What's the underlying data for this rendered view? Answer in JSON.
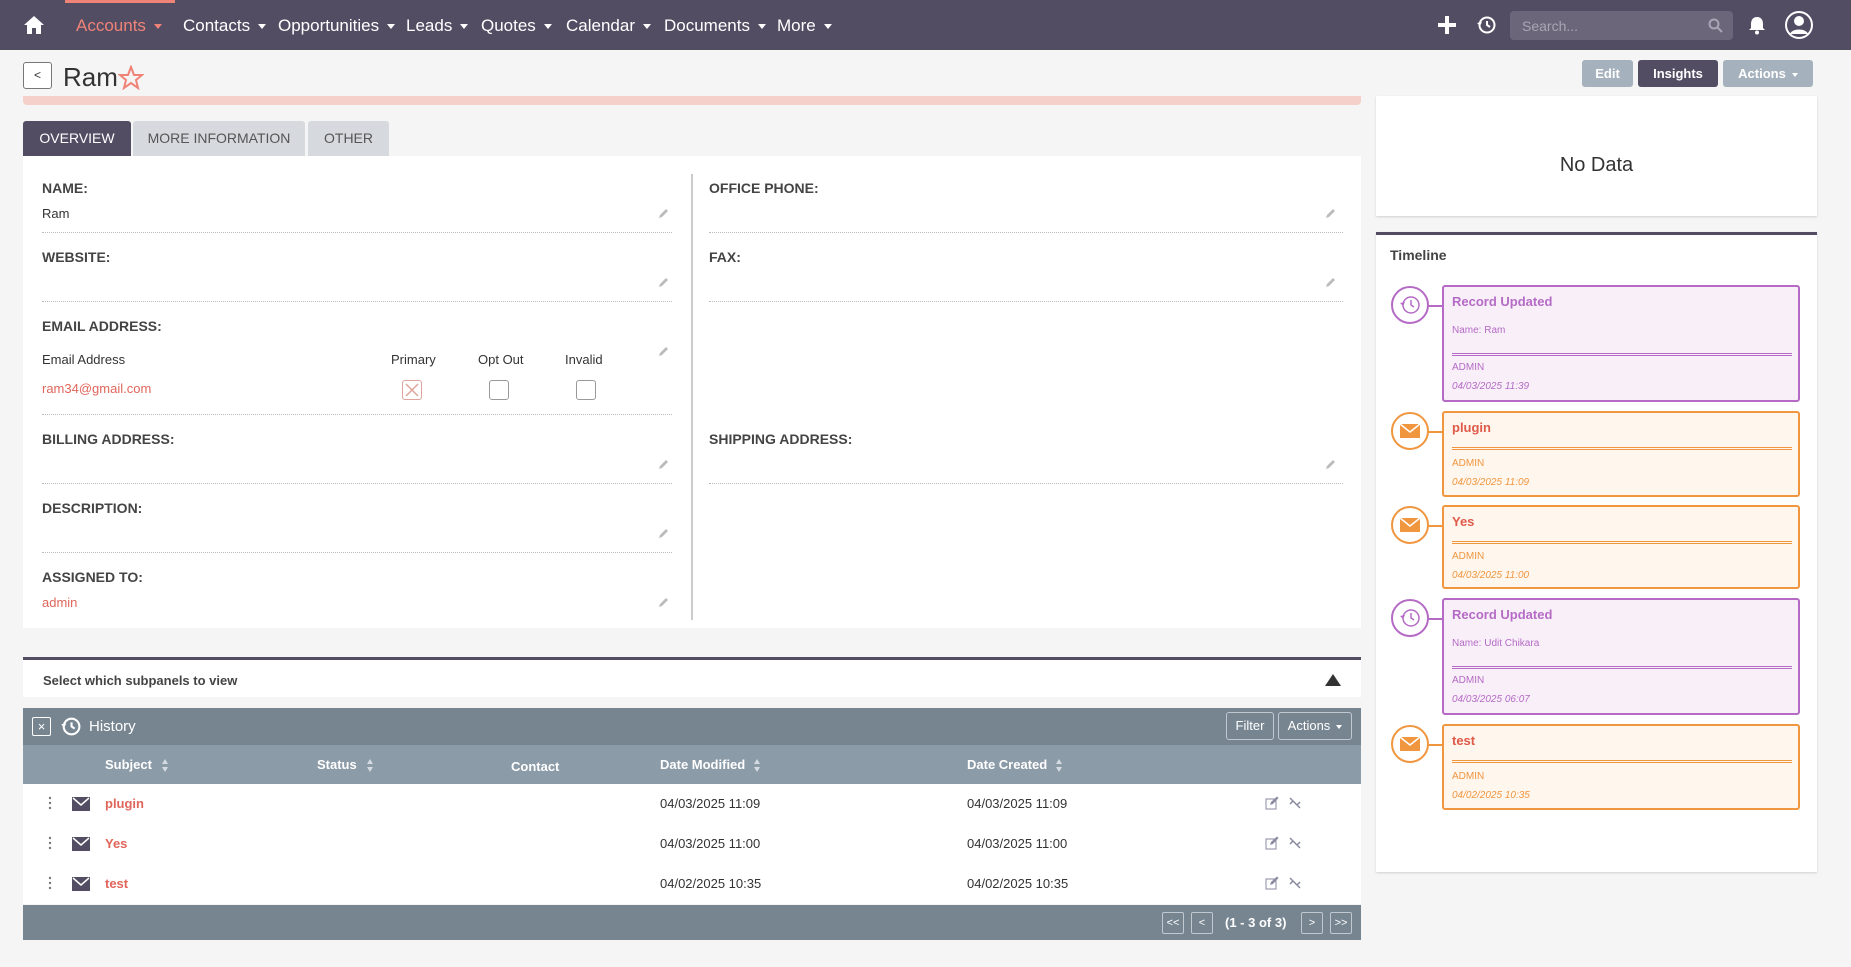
{
  "nav": {
    "items": [
      {
        "label": "Accounts"
      },
      {
        "label": "Contacts"
      },
      {
        "label": "Opportunities"
      },
      {
        "label": "Leads"
      },
      {
        "label": "Quotes"
      },
      {
        "label": "Calendar"
      },
      {
        "label": "Documents"
      },
      {
        "label": "More"
      }
    ],
    "search_placeholder": "Search..."
  },
  "record": {
    "back_label": "<",
    "title": "Ram",
    "buttons": {
      "edit": "Edit",
      "insights": "Insights",
      "actions": "Actions"
    }
  },
  "tabs": [
    "OVERVIEW",
    "MORE INFORMATION",
    "OTHER"
  ],
  "fields": {
    "name_label": "NAME:",
    "name_value": "Ram",
    "website_label": "WEBSITE:",
    "email_label": "EMAIL ADDRESS:",
    "email_col_address": "Email Address",
    "email_col_primary": "Primary",
    "email_col_optout": "Opt Out",
    "email_col_invalid": "Invalid",
    "email_value": "ram34@gmail.com",
    "billing_label": "BILLING ADDRESS:",
    "description_label": "DESCRIPTION:",
    "assigned_label": "ASSIGNED TO:",
    "assigned_value": "admin",
    "office_phone_label": "OFFICE PHONE:",
    "fax_label": "FAX:",
    "shipping_label": "SHIPPING ADDRESS:"
  },
  "subpanel_selector": "Select which subpanels to view",
  "history": {
    "close": "×",
    "title": "History",
    "filter": "Filter",
    "actions": "Actions",
    "columns": [
      "Subject",
      "Status",
      "Contact",
      "Date Modified",
      "Date Created"
    ],
    "rows": [
      {
        "subject": "plugin",
        "date_modified": "04/03/2025 11:09",
        "date_created": "04/03/2025 11:09"
      },
      {
        "subject": "Yes",
        "date_modified": "04/03/2025 11:00",
        "date_created": "04/03/2025 11:00"
      },
      {
        "subject": "test",
        "date_modified": "04/02/2025 10:35",
        "date_created": "04/02/2025 10:35"
      }
    ],
    "pagination": {
      "first": "<<",
      "prev": "<",
      "summary": "(1 - 3 of 3)",
      "next": ">",
      "last": ">>"
    }
  },
  "insights": {
    "no_data": "No Data"
  },
  "timeline": {
    "title": "Timeline",
    "entries": [
      {
        "heading": "Record Updated",
        "detail": "Name: Ram",
        "user": "ADMIN",
        "date": "04/03/2025 11:39",
        "kind": "history-icon"
      },
      {
        "heading": "plugin",
        "detail": "",
        "user": "ADMIN",
        "date": "04/03/2025 11:09",
        "kind": "envelope-icon"
      },
      {
        "heading": "Yes",
        "detail": "",
        "user": "ADMIN",
        "date": "04/03/2025 11:00",
        "kind": "envelope-icon"
      },
      {
        "heading": "Record Updated",
        "detail": "Name: Udit Chikara",
        "user": "ADMIN",
        "date": "04/03/2025 06:07",
        "kind": "history-icon"
      },
      {
        "heading": "test",
        "detail": "",
        "user": "ADMIN",
        "date": "04/02/2025 10:35",
        "kind": "envelope-icon"
      }
    ]
  },
  "colors": {
    "nav_bg": "#534d64",
    "accent": "#f08377",
    "link": "#e0665b",
    "timeline_purple": "#b56bc5",
    "timeline_orange": "#f0963f"
  }
}
